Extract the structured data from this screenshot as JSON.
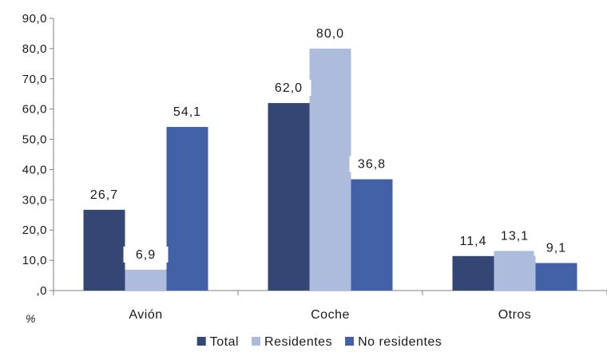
{
  "chart_data": {
    "type": "bar",
    "categories": [
      "Avión",
      "Coche",
      "Otros"
    ],
    "series": [
      {
        "name": "Total",
        "values": [
          26.7,
          62.0,
          11.4
        ],
        "color": "#334674"
      },
      {
        "name": "Residentes",
        "values": [
          6.9,
          80.0,
          13.1
        ],
        "color": "#adbcdd"
      },
      {
        "name": "No residentes",
        "values": [
          54.1,
          36.8,
          9.1
        ],
        "color": "#4261a6"
      }
    ],
    "data_labels": [
      [
        "26,7",
        "62,0",
        "11,4"
      ],
      [
        "6,9",
        "80,0",
        "13,1"
      ],
      [
        "54,1",
        "36,8",
        "9,1"
      ]
    ],
    "ylim": [
      0,
      90
    ],
    "yticks": [
      0,
      10,
      20,
      30,
      40,
      50,
      60,
      70,
      80,
      90
    ],
    "ytick_labels": [
      ",0",
      "10,0",
      "20,0",
      "30,0",
      "40,0",
      "50,0",
      "60,0",
      "70,0",
      "80,0",
      "90,0"
    ],
    "unit_label": "%",
    "grid": false,
    "legend_position": "bottom"
  }
}
